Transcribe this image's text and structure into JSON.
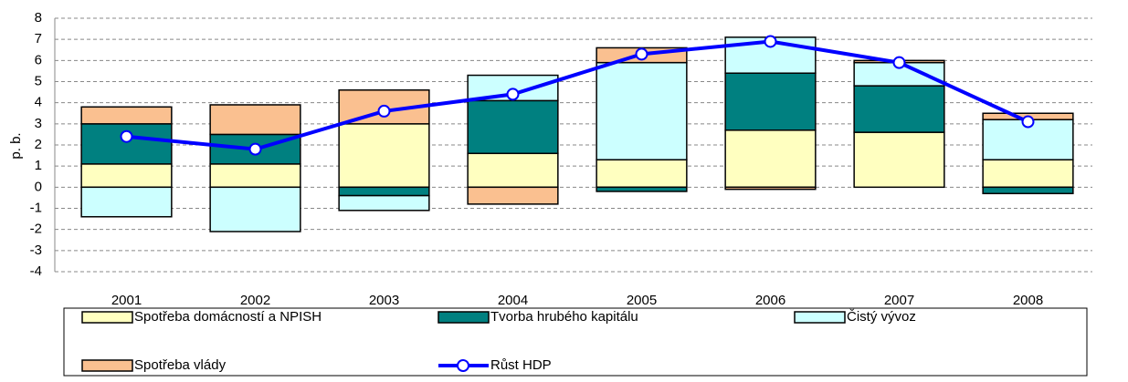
{
  "chart_data": {
    "type": "stacked_bar_line",
    "ylabel": "p. b.",
    "categories": [
      "2001",
      "2002",
      "2003",
      "2004",
      "2005",
      "2006",
      "2007",
      "2008"
    ],
    "ylim": [
      -4,
      8
    ],
    "yticks": [
      -4,
      -3,
      -2,
      -1,
      0,
      1,
      2,
      3,
      4,
      5,
      6,
      7,
      8
    ],
    "grid": true,
    "series": [
      {
        "name": "Spotřeba domácností a NPISH",
        "color": "#ffffc0",
        "values": [
          1.1,
          1.1,
          3.0,
          1.6,
          1.3,
          2.7,
          2.6,
          1.3
        ]
      },
      {
        "name": "Tvorba hrubého kapitálu",
        "color": "#008080",
        "values": [
          1.9,
          1.4,
          -0.4,
          2.5,
          -0.2,
          2.7,
          2.2,
          -0.3
        ]
      },
      {
        "name": "Čistý vývoz",
        "color": "#ccffff",
        "values": [
          -1.4,
          -2.1,
          -0.7,
          1.2,
          4.6,
          1.7,
          1.1,
          1.9
        ]
      },
      {
        "name": "Spotřeba vlády",
        "color": "#fac090",
        "values": [
          0.8,
          1.4,
          1.6,
          -0.8,
          0.7,
          -0.1,
          0.1,
          0.3
        ]
      },
      {
        "name": "Růst HDP",
        "color": "#0000ff",
        "type": "line",
        "values": [
          2.4,
          1.8,
          3.6,
          4.4,
          6.3,
          6.9,
          5.9,
          3.1
        ]
      }
    ]
  }
}
